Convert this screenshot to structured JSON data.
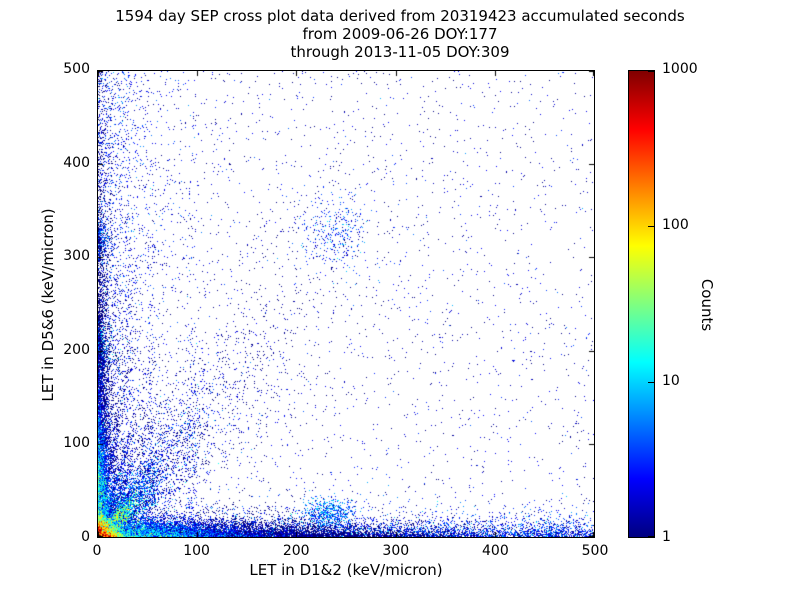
{
  "title": {
    "line1": "1594 day SEP cross plot data derived from 20319423 accumulated seconds",
    "line2": "from 2009-06-26 DOY:177",
    "line3": "through 2013-11-05 DOY:309"
  },
  "axes": {
    "xlabel": "LET in D1&2 (keV/micron)",
    "ylabel": "LET in D5&6 (keV/micron)"
  },
  "colorbar": {
    "label": "Counts"
  },
  "chart_data": {
    "type": "heatmap",
    "title": "1594 day SEP cross plot data derived from 20319423 accumulated seconds",
    "subtitle": [
      "from 2009-06-26 DOY:177",
      "through 2013-11-05 DOY:309"
    ],
    "xlabel": "LET in D1&2 (keV/micron)",
    "ylabel": "LET in D5&6 (keV/micron)",
    "xlim": [
      0,
      500
    ],
    "ylim": [
      0,
      500
    ],
    "x_ticks": [
      0,
      100,
      200,
      300,
      400,
      500
    ],
    "y_ticks": [
      0,
      100,
      200,
      300,
      400,
      500
    ],
    "grid": false,
    "legend": "colorbar-right",
    "colorbar": {
      "label": "Counts",
      "scale": "log",
      "min": 1,
      "max": 1000,
      "ticks": [
        1,
        10,
        100,
        1000
      ],
      "colormap": "jet",
      "gradient_bottom_to_top": [
        "#000080 0%",
        "#0000ff 12.5%",
        "#00ffff 37.5%",
        "#ffff00 62.5%",
        "#ff0000 87.5%",
        "#800000 100%"
      ]
    },
    "distribution_summary": "Counts peak (~1000, red/orange) in a small core at the origin, decaying through yellow/green/cyan within ~30 keV/micron. Dense blue band along the x-axis (y<20) out to 500, dense blue column along the y-axis (x<15) up to ~500, diagonal tracks fanning up-right from the origin, small dense clusters near (233,24), (240,325), (5,205), (5,320), and a sparse dark-blue background of single counts across the whole plane.",
    "render": {
      "seed": 1594,
      "components": [
        {
          "name": "background-sparse",
          "n": 2400,
          "x": {
            "dist": "uniform",
            "min": 0,
            "max": 500
          },
          "y": {
            "dist": "uniform",
            "min": 0,
            "max": 500
          },
          "intensity": {
            "a": 1.6,
            "noise": 0.5
          }
        },
        {
          "name": "left-tall-scatter",
          "n": 900,
          "x": {
            "dist": "exp",
            "scale": 40
          },
          "y": {
            "dist": "uniform",
            "min": 0,
            "max": 500
          },
          "intensity": {
            "a": 2,
            "noise": 0.5
          }
        },
        {
          "name": "streak-x30",
          "n": 260,
          "x": {
            "dist": "norm",
            "mu": 30,
            "sd": 2.5
          },
          "y": {
            "dist": "exp",
            "scale": 210
          },
          "intensity": {
            "a": 2.2,
            "noise": 0.5
          }
        },
        {
          "name": "streak-x52",
          "n": 200,
          "x": {
            "dist": "norm",
            "mu": 52,
            "sd": 2.5
          },
          "y": {
            "dist": "exp",
            "scale": 190
          },
          "intensity": {
            "a": 2,
            "noise": 0.5
          }
        },
        {
          "name": "streak-x95",
          "n": 170,
          "x": {
            "dist": "norm",
            "mu": 95,
            "sd": 3
          },
          "y": {
            "dist": "exp",
            "scale": 170
          },
          "intensity": {
            "a": 2,
            "noise": 0.5
          }
        },
        {
          "name": "cluster-mid",
          "n": 320,
          "x": {
            "dist": "norm",
            "mu": 240,
            "sd": 16
          },
          "y": {
            "dist": "norm",
            "mu": 325,
            "sd": 20
          },
          "intensity": {
            "a": 3.5,
            "noise": 0.6
          }
        },
        {
          "name": "cluster-bottom",
          "n": 650,
          "x": {
            "dist": "norm",
            "mu": 233,
            "sd": 13
          },
          "y": {
            "dist": "norm",
            "mu": 24,
            "sd": 9
          },
          "intensity": {
            "a": 5,
            "noise": 0.6
          }
        },
        {
          "name": "diagonal-broad",
          "n": 2200,
          "kind": "diag",
          "t": {
            "dist": "exp",
            "scale": 80
          },
          "slope": 1.25,
          "spread": 0.3,
          "intensity": {
            "a": 6,
            "xd": 200,
            "yd": 200,
            "noise": 0.7
          }
        },
        {
          "name": "finger-s6",
          "n": 700,
          "kind": "diag",
          "t": {
            "dist": "exp",
            "scale": 10
          },
          "slope": 6,
          "spread": 0.1,
          "intensity": {
            "a": 12,
            "xd": 55,
            "yd": 55,
            "noise": 0.8
          }
        },
        {
          "name": "finger-s32",
          "n": 700,
          "kind": "diag",
          "t": {
            "dist": "exp",
            "scale": 16
          },
          "slope": 3.2,
          "spread": 0.1,
          "intensity": {
            "a": 12,
            "xd": 55,
            "yd": 55,
            "noise": 0.8
          }
        },
        {
          "name": "finger-s22",
          "n": 700,
          "kind": "diag",
          "t": {
            "dist": "exp",
            "scale": 20
          },
          "slope": 2.2,
          "spread": 0.1,
          "intensity": {
            "a": 12,
            "xd": 55,
            "yd": 55,
            "noise": 0.8
          }
        },
        {
          "name": "finger-s15",
          "n": 700,
          "kind": "diag",
          "t": {
            "dist": "exp",
            "scale": 26
          },
          "slope": 1.5,
          "spread": 0.1,
          "intensity": {
            "a": 12,
            "xd": 55,
            "yd": 55,
            "noise": 0.8
          }
        },
        {
          "name": "finger-s10",
          "n": 700,
          "kind": "diag",
          "t": {
            "dist": "exp",
            "scale": 32
          },
          "slope": 1.05,
          "spread": 0.1,
          "intensity": {
            "a": 12,
            "xd": 55,
            "yd": 55,
            "noise": 0.8
          }
        },
        {
          "name": "finger-s07",
          "n": 700,
          "kind": "diag",
          "t": {
            "dist": "exp",
            "scale": 40
          },
          "slope": 0.72,
          "spread": 0.1,
          "intensity": {
            "a": 12,
            "xd": 55,
            "yd": 55,
            "noise": 0.8
          }
        },
        {
          "name": "left-uniform",
          "n": 1800,
          "x": {
            "dist": "exp",
            "scale": 22
          },
          "y": {
            "dist": "uniform",
            "min": 0,
            "max": 500
          },
          "intensity": {
            "a": 2.5,
            "noise": 0.6
          }
        },
        {
          "name": "cluster-left200",
          "n": 400,
          "x": {
            "dist": "exp",
            "scale": 4
          },
          "y": {
            "dist": "norm",
            "mu": 205,
            "sd": 12
          },
          "intensity": {
            "a": 6,
            "noise": 0.6
          }
        },
        {
          "name": "cluster-left320",
          "n": 250,
          "x": {
            "dist": "exp",
            "scale": 4
          },
          "y": {
            "dist": "norm",
            "mu": 320,
            "sd": 10
          },
          "intensity": {
            "a": 4,
            "noise": 0.6
          }
        },
        {
          "name": "left-band",
          "n": 7000,
          "x": {
            "dist": "exp",
            "scale": 5
          },
          "y": {
            "dist": "exp",
            "scale": 100
          },
          "intensity": {
            "a": 35,
            "xd": 8,
            "yd": 55,
            "noise": 0.8
          }
        },
        {
          "name": "bottom-uniform",
          "n": 4500,
          "x": {
            "dist": "uniform",
            "min": 0,
            "max": 500
          },
          "y": {
            "dist": "exp",
            "scale": 8
          },
          "intensity": {
            "a": 3,
            "noise": 0.6
          }
        },
        {
          "name": "bottom-band",
          "n": 14000,
          "x": {
            "dist": "exp",
            "scale": 85
          },
          "y": {
            "dist": "exp",
            "scale": 6
          },
          "intensity": {
            "a": 25,
            "xd": 60,
            "yd": 14,
            "noise": 0.8
          }
        },
        {
          "name": "core-diagonal",
          "n": 3000,
          "kind": "diag",
          "t": {
            "dist": "exp",
            "scale": 12
          },
          "slope": 1.0,
          "spread": 0.25,
          "intensity": {
            "a": 80,
            "xd": 40,
            "yd": 40,
            "noise": 0.8
          }
        },
        {
          "name": "hot-core",
          "n": 22000,
          "x": {
            "dist": "exp",
            "scale": 4.5
          },
          "y": {
            "dist": "exp",
            "scale": 4.5
          },
          "intensity": {
            "a": 1000,
            "xd": 7,
            "yd": 7,
            "noise": 0.8
          }
        }
      ]
    }
  }
}
